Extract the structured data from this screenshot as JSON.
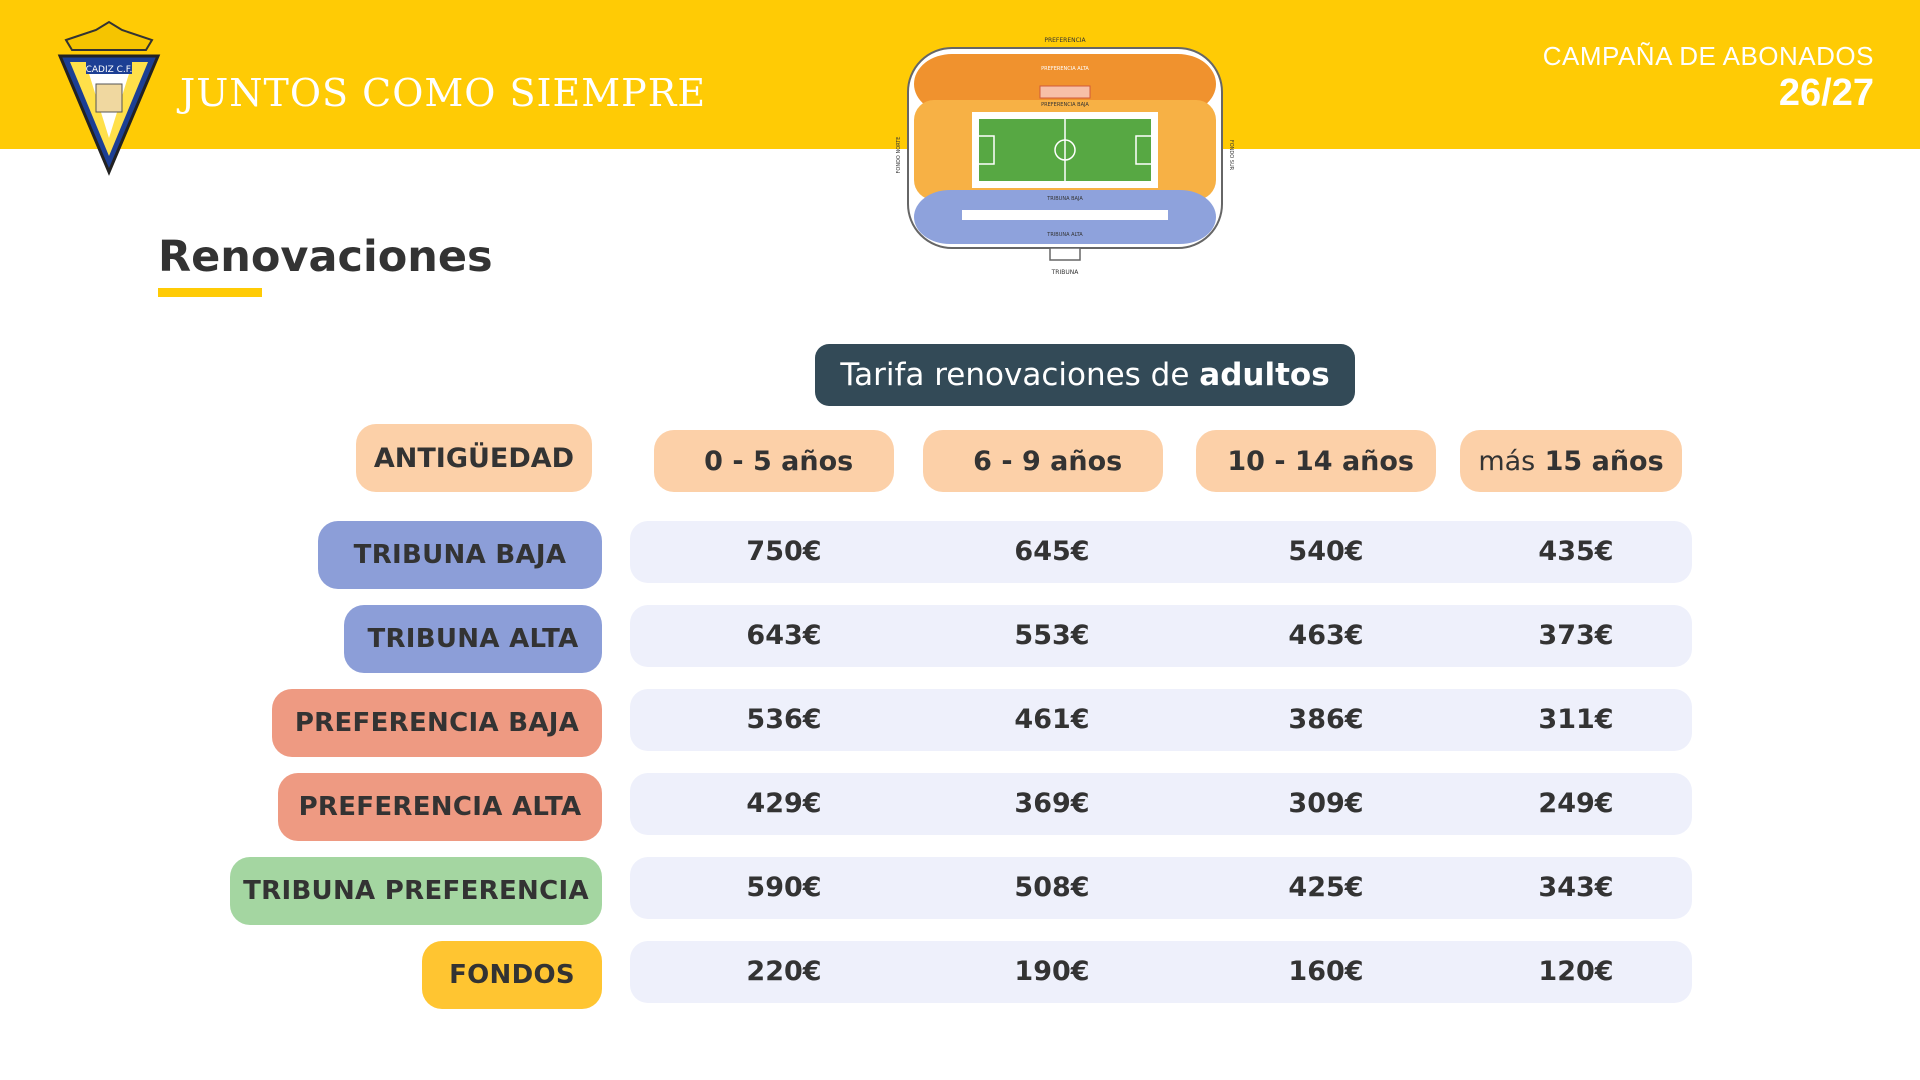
{
  "header": {
    "slogan": "JUNTOS COMO SIEMPRE",
    "campaign_line": "CAMPAÑA DE ABONADOS",
    "season": "26/27",
    "crest_text": "CADIZ C.F."
  },
  "stadium_map": {
    "labels": {
      "top": "PREFERENCIA",
      "pref_alta": "PREFERENCIA ALTA",
      "pref_baja": "PREFERENCIA BAJA",
      "left": "FONDO NORTE",
      "right": "FONDO SUR",
      "trib_baja": "TRIBUNA BAJA",
      "trib_alta": "TRIBUNA ALTA",
      "bottom": "TRIBUNA"
    }
  },
  "section": {
    "title": "Renovaciones"
  },
  "tariff": {
    "prefix": "Tarifa renovaciones de",
    "bold": "adultos"
  },
  "table": {
    "corner_label": "ANTIGÜEDAD",
    "columns": [
      {
        "thin": "",
        "bold": "0 - 5 años"
      },
      {
        "thin": "",
        "bold": "6 - 9 años"
      },
      {
        "thin": "",
        "bold": "10 - 14 años"
      },
      {
        "thin": "más ",
        "bold": "15 años"
      }
    ],
    "rows": [
      {
        "label": "TRIBUNA BAJA",
        "color": "#8c9ed8",
        "prices": [
          "750€",
          "645€",
          "540€",
          "435€"
        ]
      },
      {
        "label": "TRIBUNA ALTA",
        "color": "#8c9ed8",
        "prices": [
          "643€",
          "553€",
          "463€",
          "373€"
        ]
      },
      {
        "label": "PREFERENCIA BAJA",
        "color": "#ee9a82",
        "prices": [
          "536€",
          "461€",
          "386€",
          "311€"
        ]
      },
      {
        "label": "PREFERENCIA ALTA",
        "color": "#ee9a82",
        "prices": [
          "429€",
          "369€",
          "309€",
          "249€"
        ]
      },
      {
        "label": "TRIBUNA PREFERENCIA",
        "color": "#a4d6a1",
        "prices": [
          "590€",
          "508€",
          "425€",
          "343€"
        ]
      },
      {
        "label": "FONDOS",
        "color": "#ffc531",
        "prices": [
          "220€",
          "190€",
          "160€",
          "120€"
        ]
      }
    ]
  },
  "colors": {
    "brand_yellow": "#ffcb05",
    "title_box": "#334a57",
    "header_pill": "#fcd0a8",
    "row_bg": "#eef0fb"
  }
}
